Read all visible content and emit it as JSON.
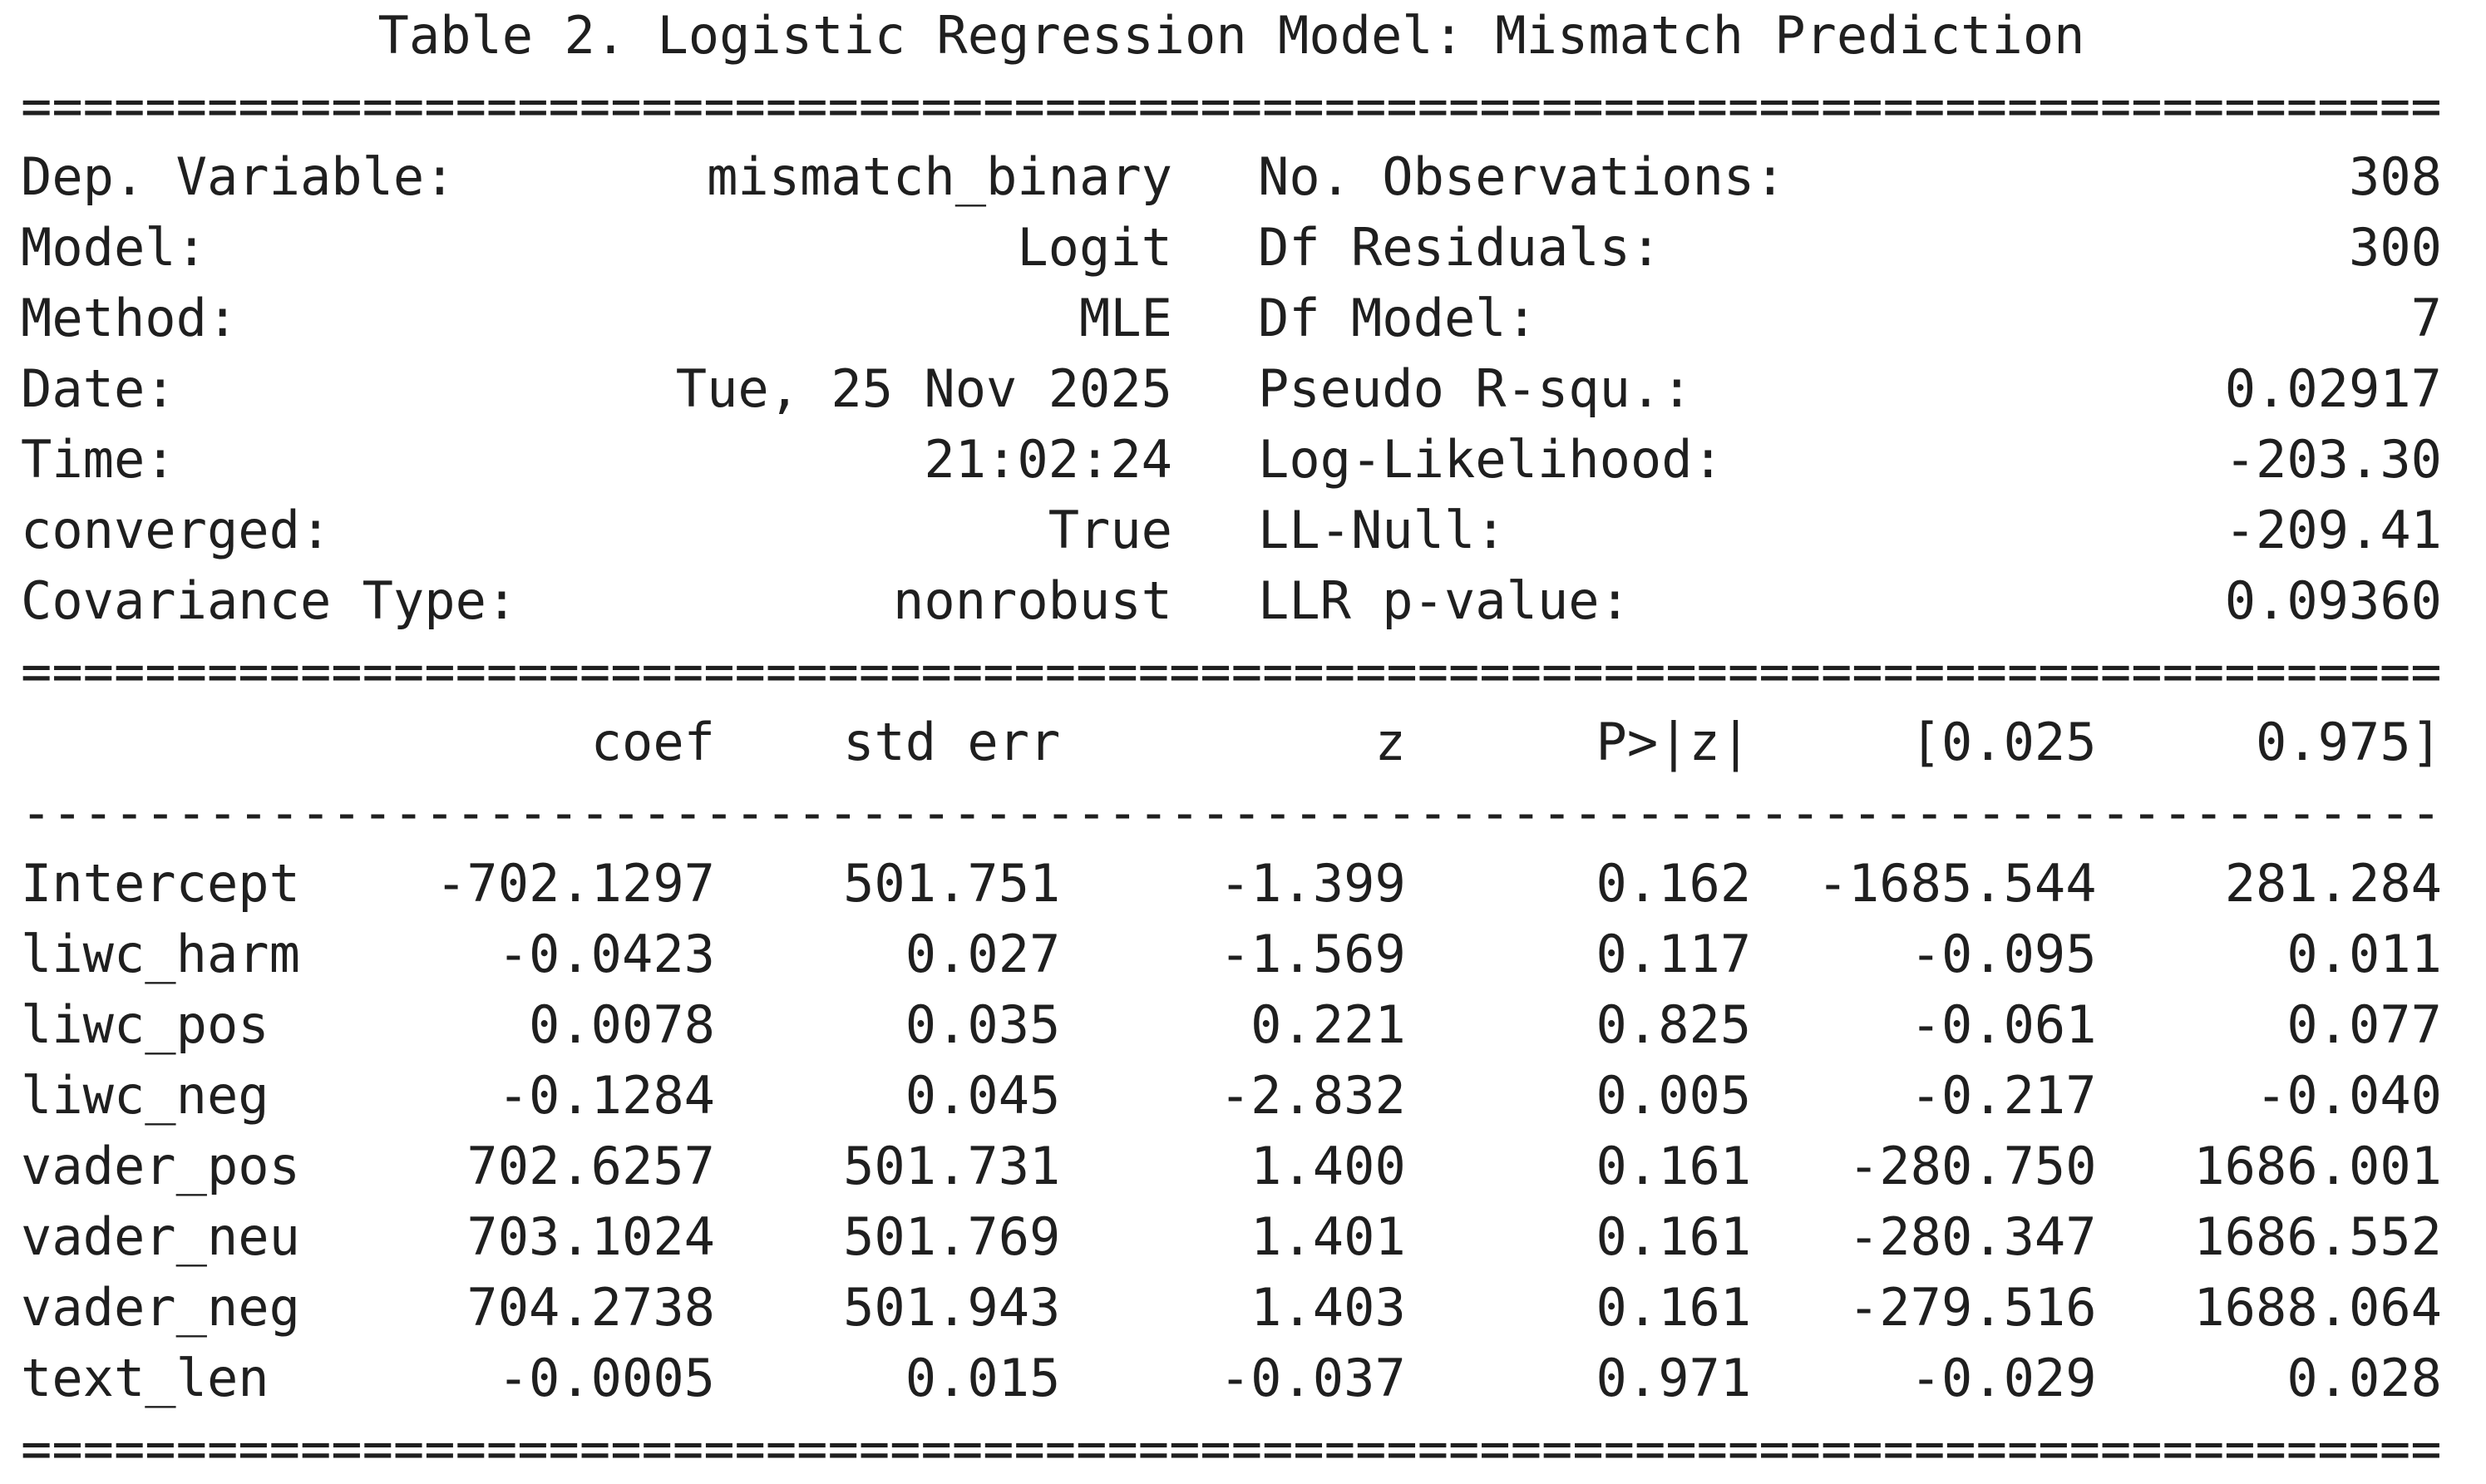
{
  "colors": {
    "text": "#1f1f1f",
    "background": "#ffffff"
  },
  "title": "Table 2. Logistic Regression Model: Mismatch Prediction",
  "separator_double": "==============================================================================",
  "separator_dashed": "------------------------------------------------------------------------------",
  "model_info": {
    "left": [
      {
        "label": "Dep. Variable:",
        "value": "mismatch_binary"
      },
      {
        "label": "Model:",
        "value": "Logit"
      },
      {
        "label": "Method:",
        "value": "MLE"
      },
      {
        "label": "Date:",
        "value": "Tue, 25 Nov 2025"
      },
      {
        "label": "Time:",
        "value": "21:02:24"
      },
      {
        "label": "converged:",
        "value": "True"
      },
      {
        "label": "Covariance Type:",
        "value": "nonrobust"
      }
    ],
    "right": [
      {
        "label": "No. Observations:",
        "value": "308"
      },
      {
        "label": "Df Residuals:",
        "value": "300"
      },
      {
        "label": "Df Model:",
        "value": "7"
      },
      {
        "label": "Pseudo R-squ.:",
        "value": "0.02917"
      },
      {
        "label": "Log-Likelihood:",
        "value": "-203.30"
      },
      {
        "label": "LL-Null:",
        "value": "-209.41"
      },
      {
        "label": "LLR p-value:",
        "value": "0.09360"
      }
    ]
  },
  "chart_data": {
    "type": "table",
    "title": "Table 2. Logistic Regression Model: Mismatch Prediction",
    "columns": [
      "",
      "coef",
      "std err",
      "z",
      "P>|z|",
      "[0.025",
      "0.975]"
    ],
    "rows": [
      [
        "Intercept",
        "-702.1297",
        "501.751",
        "-1.399",
        "0.162",
        "-1685.544",
        "281.284"
      ],
      [
        "liwc_harm",
        "-0.0423",
        "0.027",
        "-1.569",
        "0.117",
        "-0.095",
        "0.011"
      ],
      [
        "liwc_pos",
        "0.0078",
        "0.035",
        "0.221",
        "0.825",
        "-0.061",
        "0.077"
      ],
      [
        "liwc_neg",
        "-0.1284",
        "0.045",
        "-2.832",
        "0.005",
        "-0.217",
        "-0.040"
      ],
      [
        "vader_pos",
        "702.6257",
        "501.731",
        "1.400",
        "0.161",
        "-280.750",
        "1686.001"
      ],
      [
        "vader_neu",
        "703.1024",
        "501.769",
        "1.401",
        "0.161",
        "-280.347",
        "1686.552"
      ],
      [
        "vader_neg",
        "704.2738",
        "501.943",
        "1.403",
        "0.161",
        "-279.516",
        "1688.064"
      ],
      [
        "text_len",
        "-0.0005",
        "0.015",
        "-0.037",
        "0.971",
        "-0.029",
        "0.028"
      ]
    ]
  }
}
